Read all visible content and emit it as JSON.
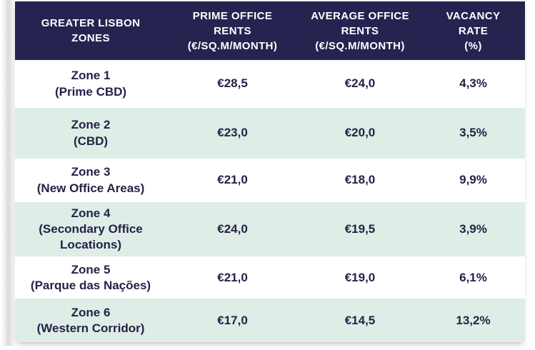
{
  "colors": {
    "header_bg": "#272350",
    "header_text": "#ffffff",
    "row_alt_bg": "#deede6",
    "row_bg": "#ffffff",
    "body_text": "#262148"
  },
  "table": {
    "headers": [
      {
        "lines": [
          "GREATER LISBON",
          "ZONES"
        ]
      },
      {
        "lines": [
          "PRIME OFFICE",
          "RENTS",
          "(€/SQ.M/MONTH)"
        ]
      },
      {
        "lines": [
          "AVERAGE OFFICE",
          "RENTS",
          "(€/SQ.M/MONTH)"
        ]
      },
      {
        "lines": [
          "VACANCY",
          "RATE",
          "(%)"
        ]
      }
    ],
    "rows": [
      {
        "zone": "Zone 1",
        "subtitle": "(Prime CBD)",
        "prime_rent": "€28,5",
        "average_rent": "€24,0",
        "vacancy": "4,3%"
      },
      {
        "zone": "Zone 2",
        "subtitle": "(CBD)",
        "prime_rent": "€23,0",
        "average_rent": "€20,0",
        "vacancy": "3,5%"
      },
      {
        "zone": "Zone 3",
        "subtitle": "(New Office Areas)",
        "prime_rent": "€21,0",
        "average_rent": "€18,0",
        "vacancy": "9,9%"
      },
      {
        "zone": "Zone 4",
        "subtitle": "(Secondary Office Locations)",
        "prime_rent": "€24,0",
        "average_rent": "€19,5",
        "vacancy": "3,9%"
      },
      {
        "zone": "Zone 5",
        "subtitle": "(Parque das Nações)",
        "prime_rent": "€21,0",
        "average_rent": "€19,0",
        "vacancy": "6,1%"
      },
      {
        "zone": "Zone 6",
        "subtitle": "(Western Corridor)",
        "prime_rent": "€17,0",
        "average_rent": "€14,5",
        "vacancy": "13,2%"
      }
    ]
  },
  "chart_data": {
    "type": "table",
    "title": "Greater Lisbon Zones office market",
    "columns": [
      "GREATER LISBON ZONES",
      "PRIME OFFICE RENTS (€/SQ.M/MONTH)",
      "AVERAGE OFFICE RENTS (€/SQ.M/MONTH)",
      "VACANCY RATE (%)"
    ],
    "rows": [
      [
        "Zone 1 (Prime CBD)",
        28.5,
        24.0,
        4.3
      ],
      [
        "Zone 2 (CBD)",
        23.0,
        20.0,
        3.5
      ],
      [
        "Zone 3 (New Office Areas)",
        21.0,
        18.0,
        9.9
      ],
      [
        "Zone 4 (Secondary Office Locations)",
        24.0,
        19.5,
        3.9
      ],
      [
        "Zone 5 (Parque das Nações)",
        21.0,
        19.0,
        6.1
      ],
      [
        "Zone 6 (Western Corridor)",
        17.0,
        14.5,
        13.2
      ]
    ],
    "units": {
      "prime_rent": "€/sq.m/month",
      "average_rent": "€/sq.m/month",
      "vacancy_rate": "%"
    },
    "decimal_separator": ","
  }
}
